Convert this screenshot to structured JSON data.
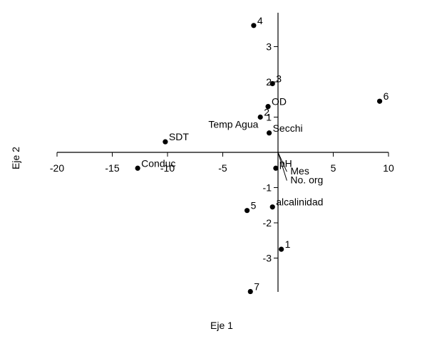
{
  "chart_data": {
    "type": "scatter",
    "title": "",
    "xlabel": "Eje 1",
    "ylabel": "Eje 2",
    "xlim": [
      -20,
      10
    ],
    "ylim": [
      -4,
      3.8
    ],
    "x_ticks": [
      -20,
      -15,
      -10,
      -5,
      5,
      10
    ],
    "y_ticks": [
      -3,
      -2,
      -1,
      1,
      2,
      3
    ],
    "grid": false,
    "legend": "none",
    "colors": {
      "point": "#000000",
      "axis": "#000000"
    },
    "points": [
      {
        "label": "4",
        "x": -2.2,
        "y": 3.6
      },
      {
        "label": "3",
        "x": -0.5,
        "y": 1.95
      },
      {
        "label": "OD",
        "x": -0.9,
        "y": 1.3
      },
      {
        "label": "2",
        "x": -1.6,
        "y": 1.0
      },
      {
        "label": "Secchi",
        "x": -0.8,
        "y": 0.55
      },
      {
        "label": "SDT",
        "x": -10.2,
        "y": 0.3
      },
      {
        "label": "Conduc",
        "x": -12.7,
        "y": -0.45
      },
      {
        "label": "pH",
        "x": -0.2,
        "y": -0.45
      },
      {
        "label": "alcalinidad",
        "x": -0.5,
        "y": -1.55
      },
      {
        "label": "5",
        "x": -2.8,
        "y": -1.65
      },
      {
        "label": "1",
        "x": 0.3,
        "y": -2.75
      },
      {
        "label": "7",
        "x": -2.5,
        "y": -3.95
      },
      {
        "label": "6",
        "x": 9.2,
        "y": 1.45
      }
    ],
    "vectors": [
      {
        "label": "Mes",
        "x": 0.8,
        "y": -0.55
      },
      {
        "label": "No. org",
        "x": 0.8,
        "y": -0.8
      }
    ],
    "annotations": [
      {
        "text": "Temp Agua",
        "x": -6.3,
        "y": 0.7
      }
    ]
  }
}
